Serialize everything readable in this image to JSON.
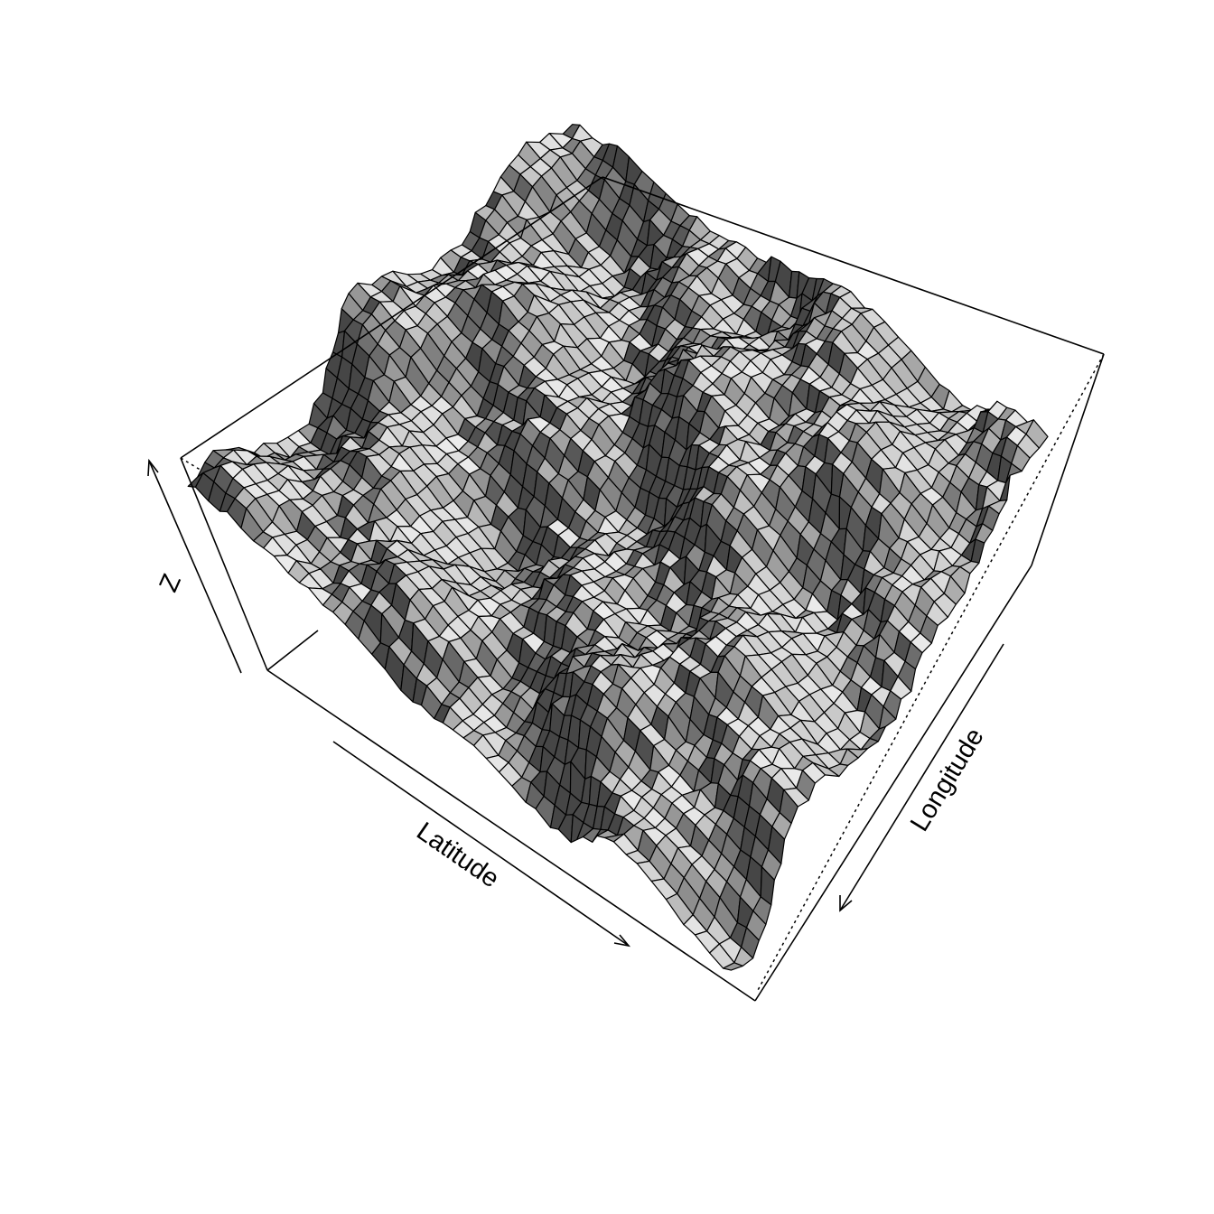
{
  "chart_data": {
    "type": "surface",
    "title": "",
    "xlabel": "Latitude",
    "ylabel": "Longitude",
    "zlabel": "Z",
    "colors": {
      "background": "#ffffff",
      "facet_edge": "#000000",
      "box": "#000000"
    }
  }
}
